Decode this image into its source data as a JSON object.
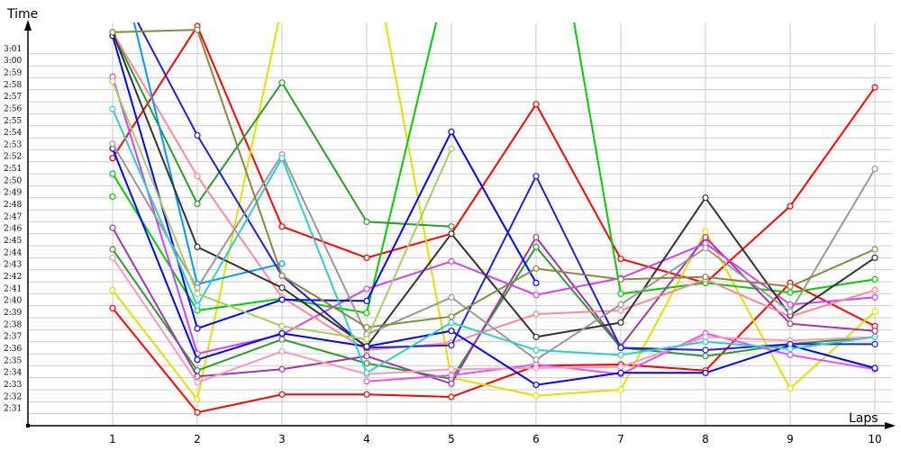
{
  "chart_data": {
    "type": "line",
    "title": "",
    "xlabel": "Laps",
    "ylabel": "Time",
    "x": [
      1,
      2,
      3,
      4,
      5,
      6,
      7,
      8,
      9,
      10
    ],
    "xlim": [
      0,
      10
    ],
    "ylim": [
      "2:30",
      "3:04"
    ],
    "y_tick_labels": [
      "2:31",
      "2:32",
      "2:33",
      "2:34",
      "2:35",
      "2:36",
      "2:37",
      "2:38",
      "2:39",
      "2:40",
      "2:41",
      "2:42",
      "2:43",
      "2:44",
      "2:45",
      "2:46",
      "2:47",
      "2:48",
      "2:49",
      "2:50",
      "2:51",
      "2:52",
      "2:53",
      "2:54",
      "2:55",
      "2:56",
      "2:57",
      "2:58",
      "2:59",
      "3:00",
      "3:01"
    ],
    "x_tick_labels": [
      "1",
      "2",
      "3",
      "4",
      "5",
      "6",
      "7",
      "8",
      "9",
      "10"
    ],
    "grid": true,
    "legend": "none",
    "series": [
      {
        "color": "#ff0000",
        "values": [
          "2:39.8",
          "2:31.1",
          "2:32.6",
          "2:32.6",
          "2:32.4",
          "2:35.0",
          "2:35.1",
          "2:34.6",
          "2:41.9",
          "2:38.3"
        ]
      },
      {
        "color": "#ff0000",
        "values": [
          "2:52.3",
          "3:03.3",
          "2:46.6",
          "2:44.0",
          "2:46.0",
          "2:56.8",
          "2:43.9",
          "2:41.9",
          "2:48.3",
          "2:58.2"
        ]
      },
      {
        "color": "#e0e000",
        "values": [
          "2:41.3",
          "2:32.2",
          "3:05.0",
          "3:12.0",
          "2:34.0",
          "2:32.5",
          "2:33.0",
          "2:46.2",
          "2:33.1",
          "2:39.5"
        ]
      },
      {
        "color": "#00cc00",
        "values": [
          "2:51.0",
          "2:39.6",
          "2:40.6",
          "2:39.4",
          "3:08.9",
          "3:22.0",
          "2:41.0",
          "2:41.9",
          "2:41.1",
          "2:42.2"
        ]
      },
      {
        "color": "#00cc00",
        "values": [
          "2:49.1",
          null,
          null,
          null,
          null,
          null,
          null,
          null,
          null,
          null
        ]
      },
      {
        "color": "#2e9a2e",
        "values": [
          "3:02.8",
          "2:48.5",
          "2:58.6",
          "2:47.0",
          "2:46.6",
          null,
          null,
          null,
          null,
          null
        ]
      },
      {
        "color": "#2e9a2e",
        "values": [
          "2:44.7",
          "2:34.6",
          "2:37.2",
          "2:35.2",
          "2:33.9",
          "2:44.9",
          "2:36.5",
          "2:35.8",
          "2:36.8",
          "2:37.4"
        ]
      },
      {
        "color": "#9b3aa8",
        "values": [
          "2:46.5",
          "2:34.1",
          "2:34.7",
          "2:35.8",
          "2:33.5",
          "2:45.7",
          "2:36.6",
          "2:45.7",
          "2:38.5",
          "2:37.9"
        ]
      },
      {
        "color": "#cc44ff",
        "values": [
          "2:59.1",
          "2:36.0",
          "2:37.6",
          "2:41.4",
          "2:43.7",
          "2:40.9",
          "2:42.3",
          "2:45.2",
          "2:40.1",
          "2:40.7"
        ]
      },
      {
        "color": "#dd55ff",
        "values": [
          null,
          null,
          null,
          "2:33.7",
          "2:34.2",
          "2:35.1",
          "2:34.3",
          "2:37.7",
          "2:35.9",
          "2:34.7"
        ]
      },
      {
        "color": "#ff8899",
        "values": [
          "3:02.8",
          "2:50.8",
          "2:40.7",
          "2:36.3",
          "2:36.9",
          "2:39.3",
          "2:39.6",
          "2:42.2",
          "2:39.1",
          "2:41.3"
        ]
      },
      {
        "color": "#ff99bb",
        "values": [
          "2:44.0",
          "2:33.6",
          "2:36.2",
          "2:34.3",
          "2:34.7",
          "2:34.8",
          "2:34.9",
          "2:37.4",
          "2:37.1",
          "2:37.4"
        ]
      },
      {
        "color": "#0099ff",
        "values": [
          "3:11.0",
          "2:41.8",
          "2:43.5",
          null,
          null,
          null,
          null,
          null,
          null,
          null
        ]
      },
      {
        "color": "#0000ff",
        "values": [
          "3:02.5",
          "2:38.1",
          "2:40.5",
          "2:40.4",
          "2:54.5",
          "2:41.9",
          null,
          null,
          null,
          null
        ]
      },
      {
        "color": "#0000ff",
        "values": [
          "2:53.1",
          "2:35.5",
          "2:37.7",
          "2:36.6",
          "2:37.9",
          "2:33.4",
          "2:34.4",
          "2:34.4",
          "2:36.7",
          "2:34.8"
        ]
      },
      {
        "color": "#2222cc",
        "values": [
          "3:07.6",
          "2:54.2",
          "2:42.5",
          "2:36.5",
          "2:36.7",
          "2:50.8",
          "2:36.5",
          "2:36.3",
          "2:36.8",
          "2:36.8"
        ]
      },
      {
        "color": "#333333",
        "values": [
          "3:02.8",
          "2:44.9",
          "2:41.5",
          "2:36.6",
          "2:46.0",
          "2:37.4",
          "2:38.6",
          "2:49.0",
          "2:39.2",
          "2:44.0"
        ]
      },
      {
        "color": "#999999",
        "values": [
          "2:53.5",
          "2:41.5",
          "2:52.6",
          "2:37.6",
          "2:40.7",
          "2:35.5",
          "2:40.1",
          "2:44.8",
          "2:39.5",
          "2:51.4"
        ]
      },
      {
        "color": "#33cccc",
        "values": [
          "2:56.4",
          "2:40.0",
          "2:52.3",
          "2:34.4",
          "2:38.6",
          "2:36.3",
          "2:35.9",
          "2:37.0",
          "2:36.4",
          "2:37.4"
        ]
      },
      {
        "color": "#888844",
        "values": [
          "3:02.8",
          "3:03.0",
          "2:42.5",
          "2:38.2",
          "2:39.1",
          "2:43.1",
          "2:42.2",
          "2:42.4",
          "2:41.6",
          "2:44.7"
        ]
      },
      {
        "color": "#aacc66",
        "values": [
          "2:58.7",
          "2:41.0",
          "2:38.3",
          "2:37.2",
          "2:53.1",
          null,
          null,
          null,
          null,
          null
        ]
      }
    ]
  }
}
